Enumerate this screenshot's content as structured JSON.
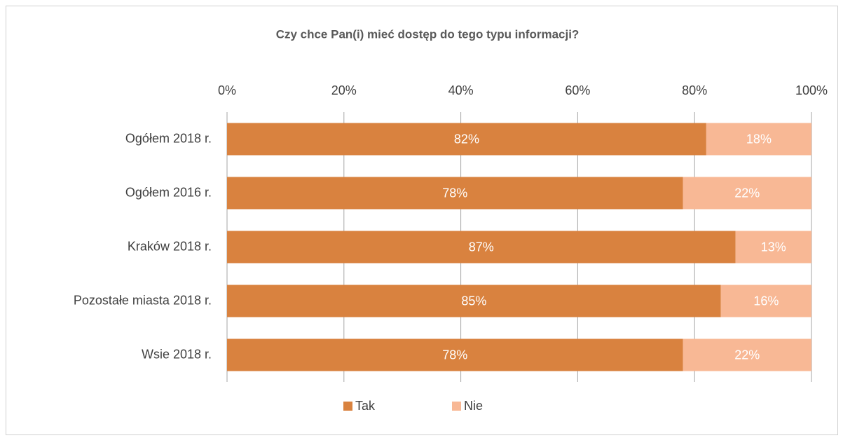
{
  "chart_data": {
    "type": "stacked_barh",
    "title": "Czy chce Pan(i) mieć dostęp do tego typu informacji?",
    "categories": [
      "Ogółem 2018 r.",
      "Ogółem 2016 r.",
      "Kraków 2018 r.",
      "Pozostałe miasta 2018 r.",
      "Wsie 2018 r."
    ],
    "series": [
      {
        "name": "Tak",
        "color": "#d9823f",
        "values": [
          82,
          78,
          87,
          84.5,
          78
        ],
        "value_labels": [
          "82%",
          "78%",
          "87%",
          "85%",
          "78%"
        ]
      },
      {
        "name": "Nie",
        "color": "#f8b895",
        "values": [
          18,
          22,
          13,
          15.5,
          22
        ],
        "value_labels": [
          "18%",
          "22%",
          "13%",
          "16%",
          "22%"
        ]
      }
    ],
    "xlim": [
      0,
      100
    ],
    "xticks": [
      {
        "value": 0,
        "label": "0%"
      },
      {
        "value": 20,
        "label": "20%"
      },
      {
        "value": 40,
        "label": "40%"
      },
      {
        "value": 60,
        "label": "60%"
      },
      {
        "value": 80,
        "label": "80%"
      },
      {
        "value": 100,
        "label": "100%"
      }
    ],
    "grid": true,
    "legend": "bottom"
  }
}
